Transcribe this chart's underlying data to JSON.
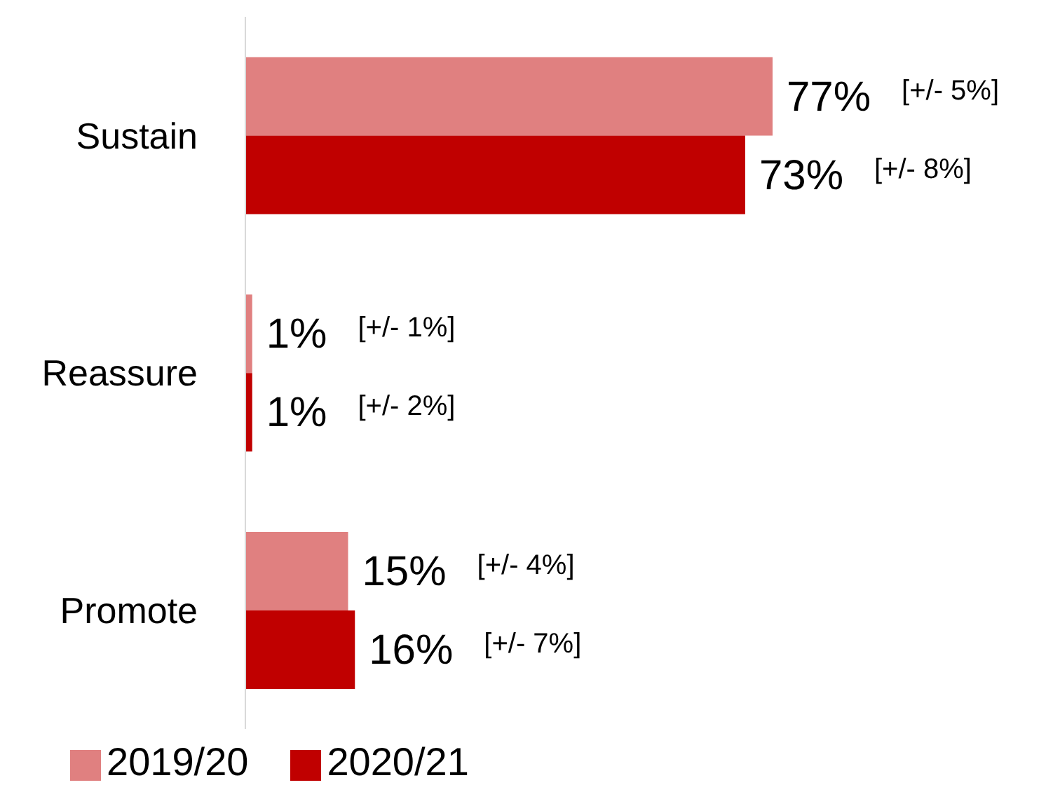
{
  "chart_data": {
    "type": "bar",
    "orientation": "horizontal",
    "categories": [
      "Sustain",
      "Reassure",
      "Promote"
    ],
    "series": [
      {
        "name": "2019/20",
        "color": "#e08080",
        "values": [
          77,
          1,
          15
        ],
        "value_labels": [
          "77% [+/- 5%]",
          "1% [+/- 1%]",
          "15% [+/- 4%]"
        ]
      },
      {
        "name": "2020/21",
        "color": "#c00000",
        "values": [
          73,
          1,
          16
        ],
        "value_labels": [
          "73% [+/- 8%]",
          "1% [+/- 2%]",
          "16% [+/- 7%]"
        ]
      }
    ],
    "legend": "bottom left"
  }
}
